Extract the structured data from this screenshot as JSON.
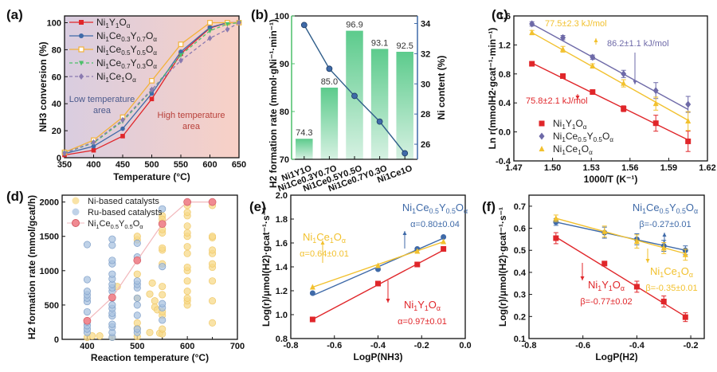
{
  "chart_data": [
    {
      "panel": "(a)",
      "type": "line",
      "xlabel": "Temperature (°C)",
      "ylabel": "NH3 conversion (%)",
      "xlim": [
        350,
        650
      ],
      "ylim": [
        0,
        105
      ],
      "xticks": [
        350,
        400,
        450,
        500,
        550,
        600,
        650
      ],
      "yticks": [
        0,
        20,
        40,
        60,
        80,
        100
      ],
      "legend": "top-left",
      "annotations": [
        {
          "text": [
            "Low temperature",
            "area"
          ],
          "color": "#4b5a8c"
        },
        {
          "text": [
            "High temperature",
            "area"
          ],
          "color": "#b8403a"
        }
      ],
      "background": {
        "left": "#d9cde0",
        "right": "#f8d0c6"
      },
      "x": [
        350,
        400,
        450,
        500,
        550,
        600,
        630,
        650
      ],
      "series": [
        {
          "name": "Ni1Y1Oα",
          "sub": [
            "Ni",
            "1",
            "Y",
            "1",
            "O",
            "α"
          ],
          "color": "#e0262a",
          "marker": "square",
          "dash": false,
          "values": [
            2,
            5.5,
            16,
            43.5,
            77,
            96,
            100,
            100
          ]
        },
        {
          "name": "Ni1Ce0.3Y0.7Oα",
          "sub": [
            "Ni",
            "1",
            "Ce",
            "0.3",
            "Y",
            "0.7",
            "O",
            "α"
          ],
          "color": "#3f6aa8",
          "marker": "circle",
          "dash": false,
          "values": [
            3,
            8.5,
            21.5,
            47.5,
            78.5,
            96.5,
            100,
            100
          ]
        },
        {
          "name": "Ni1Ce0.5Y0.5Oα",
          "sub": [
            "Ni",
            "1",
            "Ce",
            "0.5",
            "Y",
            "0.5",
            "O",
            "α"
          ],
          "color": "#f2b23a",
          "marker": "open-square",
          "dash": false,
          "values": [
            4,
            13,
            30,
            57,
            84,
            100,
            100,
            100
          ]
        },
        {
          "name": "Ni1Ce0.7Y0.3Oα",
          "sub": [
            "Ni",
            "1",
            "Ce",
            "0.7",
            "Y",
            "0.3",
            "O",
            "α"
          ],
          "color": "#4cbf6a",
          "marker": "triangle-down",
          "dash": true,
          "values": [
            3.5,
            11,
            27,
            50,
            76,
            94,
            99,
            100
          ]
        },
        {
          "name": "Ni1Ce1Oα",
          "sub": [
            "Ni",
            "1",
            "Ce",
            "1",
            "O",
            "α"
          ],
          "color": "#8a7ab0",
          "marker": "diamond",
          "dash": true,
          "values": [
            3.5,
            11.5,
            28,
            50.5,
            72,
            88.5,
            95,
            100
          ]
        }
      ]
    },
    {
      "panel": "(b)",
      "type": "bar",
      "categories": [
        "Ni1Y1O",
        "Ni1Ce0.3Y0.7O",
        "Ni1Ce0.5Y0.5O",
        "Ni1Ce0.7Y0.3O",
        "Ni1Ce1O"
      ],
      "values": [
        74.3,
        85.0,
        96.9,
        93.1,
        92.5
      ],
      "value_labels": [
        "74.3",
        "85.0",
        "96.9",
        "93.1",
        "92.5"
      ],
      "ylabel": "H2 formation rate (mmol·gNi⁻¹·min⁻¹)",
      "ylim": [
        70,
        100
      ],
      "yticks": [
        70,
        80,
        90,
        100
      ],
      "bar_color": "#5ccb8c",
      "secondary": {
        "type": "line",
        "name": "Ni content",
        "ylabel": "Ni content (%)",
        "ylim": [
          25,
          34.5
        ],
        "yticks": [
          26,
          28,
          30,
          32,
          34
        ],
        "values": [
          33.9,
          31.0,
          29.2,
          27.5,
          25.4
        ],
        "color": "#2f5d8a"
      }
    },
    {
      "panel": "(c)",
      "type": "scatter",
      "xlabel": "1000/T (K⁻¹)",
      "ylabel": "Ln r(mmolH2·gcat⁻¹·min⁻¹)",
      "xlim": [
        1.47,
        1.62
      ],
      "ylim": [
        -0.4,
        1.6
      ],
      "xticks": [
        1.47,
        1.5,
        1.53,
        1.56,
        1.59,
        1.62
      ],
      "yticks": [
        -0.4,
        0.0,
        0.4,
        0.8,
        1.2,
        1.6
      ],
      "legend": "bottom-left",
      "x": [
        1.484,
        1.508,
        1.531,
        1.555,
        1.58,
        1.605
      ],
      "series": [
        {
          "name": "Ni1Y1Oα",
          "sub": [
            "Ni",
            "1",
            "Y",
            "1",
            "O",
            "α"
          ],
          "color": "#e0262a",
          "marker": "square",
          "values": [
            0.94,
            0.77,
            0.55,
            0.32,
            0.12,
            -0.13
          ],
          "errors": [
            0.02,
            0.03,
            0.03,
            0.04,
            0.11,
            0.14
          ],
          "fit": [
            0.95,
            -0.11
          ],
          "ea": "75.8±2.1 kJ/mol"
        },
        {
          "name": "Ni1Ce0.5Y0.5Oα",
          "sub": [
            "Ni",
            "1",
            "Ce",
            "0.5",
            "Y",
            "0.5",
            "O",
            "α"
          ],
          "color": "#6e6aa8",
          "marker": "diamond",
          "values": [
            1.49,
            1.3,
            1.03,
            0.8,
            0.57,
            0.38
          ],
          "errors": [
            0.03,
            0.03,
            0.03,
            0.05,
            0.11,
            0.11
          ],
          "fit": [
            1.49,
            0.31
          ],
          "ea": "86.2±1.1 kJ/mol"
        },
        {
          "name": "Ni1Ce1Oα",
          "sub": [
            "Ni",
            "1",
            "Ce",
            "1",
            "O",
            "α"
          ],
          "color": "#f2c12e",
          "marker": "triangle",
          "values": [
            1.37,
            1.14,
            0.91,
            0.67,
            0.39,
            0.15
          ],
          "errors": [
            0.03,
            0.04,
            0.03,
            0.05,
            0.09,
            0.13
          ],
          "fit": [
            1.37,
            0.16
          ],
          "ea": "77.5±2.3 kJ/mol"
        }
      ]
    },
    {
      "panel": "(d)",
      "type": "scatter",
      "xlabel": "Reaction temperature (°C)",
      "ylabel": "H2 formation rate (mmol/gcat/h)",
      "xlim": [
        350,
        700
      ],
      "ylim": [
        0,
        2100
      ],
      "xticks": [
        400,
        500,
        600,
        700
      ],
      "xticks_minor": [
        450,
        550,
        650
      ],
      "yticks": [
        0,
        500,
        1000,
        1500,
        2000
      ],
      "legend": "top-left",
      "series": [
        {
          "name": "Ni-based catalysts",
          "color": "#f7d98a",
          "points": [
            [
              400,
              30
            ],
            [
              410,
              50
            ],
            [
              425,
              50
            ],
            [
              450,
              30
            ],
            [
              460,
              770
            ],
            [
              500,
              40
            ],
            [
              500,
              160
            ],
            [
              500,
              240
            ],
            [
              500,
              600
            ],
            [
              500,
              950
            ],
            [
              500,
              1450
            ],
            [
              500,
              1500
            ],
            [
              525,
              100
            ],
            [
              525,
              660
            ],
            [
              530,
              820
            ],
            [
              535,
              560
            ],
            [
              535,
              470
            ],
            [
              540,
              430
            ],
            [
              545,
              90
            ],
            [
              550,
              80
            ],
            [
              550,
              150
            ],
            [
              550,
              350
            ],
            [
              550,
              400
            ],
            [
              550,
              650
            ],
            [
              550,
              770
            ],
            [
              550,
              1100
            ],
            [
              550,
              1300
            ],
            [
              550,
              1330
            ],
            [
              550,
              1550
            ],
            [
              550,
              1600
            ],
            [
              550,
              1700
            ],
            [
              550,
              1800
            ],
            [
              550,
              1750
            ],
            [
              600,
              500
            ],
            [
              600,
              560
            ],
            [
              600,
              600
            ],
            [
              600,
              700
            ],
            [
              600,
              850
            ],
            [
              600,
              1000
            ],
            [
              600,
              1050
            ],
            [
              600,
              1250
            ],
            [
              600,
              1350
            ],
            [
              600,
              1500
            ],
            [
              600,
              1550
            ],
            [
              600,
              1650
            ],
            [
              600,
              1800
            ],
            [
              600,
              1850
            ],
            [
              600,
              1950
            ],
            [
              650,
              240
            ],
            [
              650,
              560
            ],
            [
              650,
              850
            ],
            [
              650,
              1050
            ],
            [
              650,
              1100
            ],
            [
              650,
              1250
            ],
            [
              650,
              1300
            ],
            [
              650,
              1480
            ],
            [
              650,
              1500
            ],
            [
              650,
              1950
            ]
          ]
        },
        {
          "name": "Ru-based catalysts",
          "color": "#a9c3e0",
          "points": [
            [
              400,
              100
            ],
            [
              400,
              150
            ],
            [
              400,
              200
            ],
            [
              400,
              250
            ],
            [
              400,
              400
            ],
            [
              400,
              550
            ],
            [
              400,
              600
            ],
            [
              400,
              650
            ],
            [
              400,
              700
            ],
            [
              400,
              870
            ],
            [
              400,
              1380
            ],
            [
              450,
              30
            ],
            [
              450,
              100
            ],
            [
              450,
              180
            ],
            [
              450,
              220
            ],
            [
              450,
              340
            ],
            [
              450,
              380
            ],
            [
              450,
              450
            ],
            [
              450,
              500
            ],
            [
              450,
              600
            ],
            [
              450,
              700
            ],
            [
              450,
              750
            ],
            [
              450,
              800
            ],
            [
              450,
              880
            ],
            [
              450,
              950
            ],
            [
              450,
              1100
            ],
            [
              450,
              1150
            ],
            [
              450,
              1370
            ],
            [
              450,
              1460
            ],
            [
              500,
              100
            ],
            [
              500,
              150
            ],
            [
              500,
              350
            ],
            [
              500,
              500
            ],
            [
              500,
              600
            ],
            [
              500,
              750
            ],
            [
              500,
              800
            ],
            [
              500,
              850
            ],
            [
              500,
              1200
            ],
            [
              500,
              1400
            ],
            [
              550,
              280
            ],
            [
              550,
              460
            ],
            [
              550,
              520
            ],
            [
              550,
              1060
            ],
            [
              550,
              1900
            ]
          ]
        },
        {
          "name": "Ni1Ce0.5Y0.5Oα",
          "sub": [
            "Ni",
            "1",
            "Ce",
            "0.5",
            "Y",
            "0.5",
            "O",
            "α"
          ],
          "color": "#f08a92",
          "line": true,
          "points": [
            [
              400,
              270
            ],
            [
              450,
              610
            ],
            [
              500,
              1150
            ],
            [
              550,
              1680
            ],
            [
              600,
              2000
            ],
            [
              650,
              2000
            ]
          ]
        }
      ]
    },
    {
      "panel": "(e)",
      "type": "scatter",
      "xlabel": "LogP(NH3)",
      "ylabel": "Log(r)/μmol(H2)·gcat⁻¹·s⁻¹",
      "xlim": [
        -0.8,
        0.0
      ],
      "ylim": [
        0.8,
        2.0
      ],
      "xticks": [
        -0.8,
        -0.6,
        -0.4,
        -0.2,
        0.0
      ],
      "yticks": [
        0.8,
        1.0,
        1.2,
        1.4,
        1.6,
        1.8,
        2.0
      ],
      "x": [
        -0.7,
        -0.4,
        -0.22,
        -0.1
      ],
      "series": [
        {
          "name": "Ni1Y1Oα",
          "sub": [
            "Ni",
            "1",
            "Y",
            "1",
            "O",
            "α"
          ],
          "color": "#e0262a",
          "marker": "square",
          "values": [
            0.96,
            1.26,
            1.42,
            1.55
          ],
          "fit": [
            0.96,
            1.54
          ],
          "label": "α=0.97±0.01"
        },
        {
          "name": "Ni1Ce0.5Y0.5Oα",
          "sub": [
            "Ni",
            "1",
            "Ce",
            "0.5",
            "Y",
            "0.5",
            "O",
            "α"
          ],
          "color": "#3f6aa8",
          "marker": "circle",
          "values": [
            1.18,
            1.38,
            1.55,
            1.65
          ],
          "fit": [
            1.16,
            1.64
          ],
          "label": "α=0.80±0.04"
        },
        {
          "name": "Ni1Ce1Oα",
          "sub": [
            "Ni",
            "1",
            "Ce",
            "1",
            "O",
            "α"
          ],
          "color": "#f2c12e",
          "marker": "triangle",
          "values": [
            1.23,
            1.41,
            1.53,
            1.61
          ],
          "fit": [
            1.23,
            1.61
          ],
          "label": "α=0.64±0.01"
        }
      ]
    },
    {
      "panel": "(f)",
      "type": "scatter",
      "xlabel": "LogP(H2)",
      "ylabel": "Log(r)/μmol(H2)·gcat⁻¹·s⁻¹",
      "xlim": [
        -0.8,
        -0.15
      ],
      "ylim": [
        0.1,
        0.75
      ],
      "xticks": [
        -0.8,
        -0.6,
        -0.4,
        -0.2
      ],
      "yticks": [
        0.1,
        0.2,
        0.3,
        0.4,
        0.5,
        0.6,
        0.7
      ],
      "x": [
        -0.7,
        -0.52,
        -0.4,
        -0.3,
        -0.22
      ],
      "series": [
        {
          "name": "Ni1Y1Oα",
          "sub": [
            "Ni",
            "1",
            "Y",
            "1",
            "O",
            "α"
          ],
          "color": "#e0262a",
          "marker": "square",
          "values": [
            0.555,
            0.44,
            0.335,
            0.268,
            0.197
          ],
          "errors": [
            0.025,
            0.01,
            0.025,
            0.025,
            0.02
          ],
          "fit": [
            0.56,
            0.2
          ],
          "label": "β=-0.77±0.02"
        },
        {
          "name": "Ni1Ce0.5Y0.5Oα",
          "sub": [
            "Ni",
            "1",
            "Ce",
            "0.5",
            "Y",
            "0.5",
            "O",
            "α"
          ],
          "color": "#3f6aa8",
          "marker": "circle",
          "values": [
            0.628,
            0.58,
            0.55,
            0.52,
            0.5
          ],
          "errors": [
            0.015,
            0.025,
            0.025,
            0.025,
            0.02
          ],
          "fit": [
            0.628,
            0.5
          ],
          "label": "β=-0.27±0.01"
        },
        {
          "name": "Ni1Ce1Oα",
          "sub": [
            "Ni",
            "1",
            "Ce",
            "1",
            "O",
            "α"
          ],
          "color": "#f2c12e",
          "marker": "triangle",
          "values": [
            0.645,
            0.585,
            0.54,
            0.51,
            0.48
          ],
          "errors": [
            0.015,
            0.025,
            0.03,
            0.025,
            0.025
          ],
          "fit": [
            0.645,
            0.485
          ],
          "label": "β=-0.35±0.01"
        }
      ]
    }
  ]
}
